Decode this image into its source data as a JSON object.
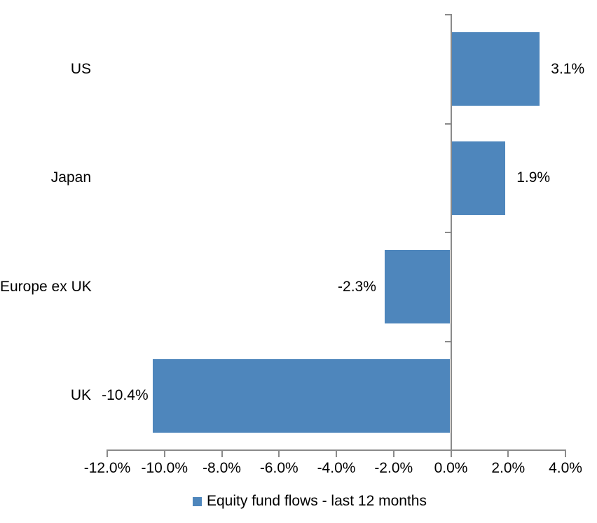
{
  "chart_data": {
    "type": "bar",
    "orientation": "horizontal",
    "title": "",
    "categories": [
      "US",
      "Japan",
      "Europe ex UK",
      "UK"
    ],
    "values": [
      3.1,
      1.9,
      -2.3,
      -10.4
    ],
    "data_labels": [
      "3.1%",
      "1.9%",
      "-2.3%",
      "-10.4%"
    ],
    "series_name": "Equity fund flows - last 12 months",
    "xlabel": "",
    "ylabel": "",
    "xlim": [
      -12,
      4
    ],
    "x_tick_step": 2,
    "x_tick_values": [
      -12,
      -10,
      -8,
      -6,
      -4,
      -2,
      0,
      2,
      4
    ],
    "x_tick_labels": [
      "-12.0%",
      "-10.0%",
      "-8.0%",
      "-6.0%",
      "-4.0%",
      "-2.0%",
      "0.0%",
      "2.0%",
      "4.0%"
    ],
    "grid": false,
    "legend_position": "bottom",
    "colors": {
      "bar": "#4e86bc",
      "axis": "#8a8a8a",
      "text": "#000000",
      "background": "#ffffff"
    }
  },
  "legend": {
    "label": "Equity fund flows - last 12 months"
  }
}
